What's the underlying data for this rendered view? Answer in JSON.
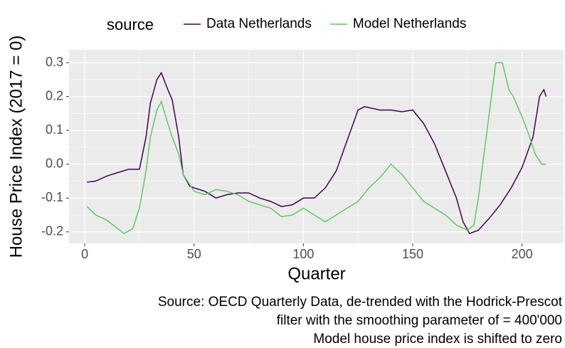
{
  "chart_data": {
    "type": "line",
    "x_label": "Quarter",
    "y_label": "House Price Index (2017 = 0)",
    "legend_title": "source",
    "caption": [
      "Source: OECD Quarterly Data, de-trended with the Hodrick-Prescot",
      "filter with the smoothing parameter of = 400'000",
      "Model house price index is shifted to zero"
    ],
    "xlim": [
      -7.2,
      219
    ],
    "ylim": [
      -0.234,
      0.338
    ],
    "xticks": [
      0,
      50,
      100,
      150,
      200
    ],
    "yticks": [
      {
        "value": -0.2,
        "label": "-0.2"
      },
      {
        "value": -0.1,
        "label": "-0.1"
      },
      {
        "value": 0,
        "label": "0.0"
      },
      {
        "value": 0.1,
        "label": "0.1"
      },
      {
        "value": 0.2,
        "label": "0.2"
      },
      {
        "value": 0.3,
        "label": "0.3"
      }
    ],
    "x_minor_ticks": [
      25,
      75,
      125,
      175
    ],
    "y_minor_ticks": [
      -0.15,
      -0.05,
      0.05,
      0.15,
      0.25
    ],
    "grid": true,
    "series": [
      {
        "name": "Data Netherlands",
        "color": "#440154",
        "x": [
          1,
          5,
          10,
          15,
          20,
          25,
          28,
          30,
          33,
          35,
          38,
          40,
          43,
          45,
          48,
          50,
          55,
          60,
          65,
          70,
          75,
          80,
          85,
          90,
          95,
          100,
          105,
          110,
          115,
          120,
          125,
          128,
          135,
          140,
          145,
          150,
          155,
          160,
          165,
          170,
          173,
          176,
          180,
          185,
          190,
          195,
          200,
          205,
          208,
          210,
          211
        ],
        "values": [
          -0.053,
          -0.05,
          -0.035,
          -0.025,
          -0.015,
          -0.015,
          0.08,
          0.18,
          0.25,
          0.27,
          0.22,
          0.19,
          0.08,
          -0.03,
          -0.065,
          -0.07,
          -0.08,
          -0.1,
          -0.09,
          -0.085,
          -0.085,
          -0.1,
          -0.11,
          -0.125,
          -0.12,
          -0.1,
          -0.1,
          -0.07,
          -0.02,
          0.07,
          0.16,
          0.17,
          0.16,
          0.16,
          0.155,
          0.16,
          0.12,
          0.06,
          -0.02,
          -0.1,
          -0.17,
          -0.205,
          -0.195,
          -0.16,
          -0.12,
          -0.07,
          -0.01,
          0.08,
          0.2,
          0.22,
          0.2
        ]
      },
      {
        "name": "Model Netherlands",
        "color": "#5ec962",
        "x": [
          1,
          5,
          10,
          15,
          18,
          22,
          25,
          28,
          30,
          33,
          35,
          38,
          40,
          43,
          45,
          48,
          50,
          55,
          60,
          65,
          70,
          75,
          80,
          85,
          90,
          95,
          100,
          105,
          110,
          115,
          120,
          125,
          130,
          135,
          140,
          145,
          150,
          155,
          160,
          165,
          170,
          175,
          178,
          180,
          183,
          186,
          188,
          191,
          194,
          196,
          200,
          203,
          206,
          209,
          211
        ],
        "values": [
          -0.125,
          -0.15,
          -0.165,
          -0.19,
          -0.205,
          -0.19,
          -0.13,
          -0.02,
          0.08,
          0.16,
          0.185,
          0.12,
          0.08,
          0.03,
          -0.03,
          -0.06,
          -0.08,
          -0.09,
          -0.075,
          -0.08,
          -0.09,
          -0.11,
          -0.12,
          -0.13,
          -0.155,
          -0.15,
          -0.13,
          -0.15,
          -0.17,
          -0.15,
          -0.13,
          -0.11,
          -0.07,
          -0.04,
          0.0,
          -0.03,
          -0.07,
          -0.11,
          -0.13,
          -0.15,
          -0.18,
          -0.195,
          -0.18,
          -0.1,
          0.05,
          0.2,
          0.3,
          0.3,
          0.22,
          0.2,
          0.14,
          0.09,
          0.03,
          0.0,
          0.0
        ]
      }
    ]
  }
}
